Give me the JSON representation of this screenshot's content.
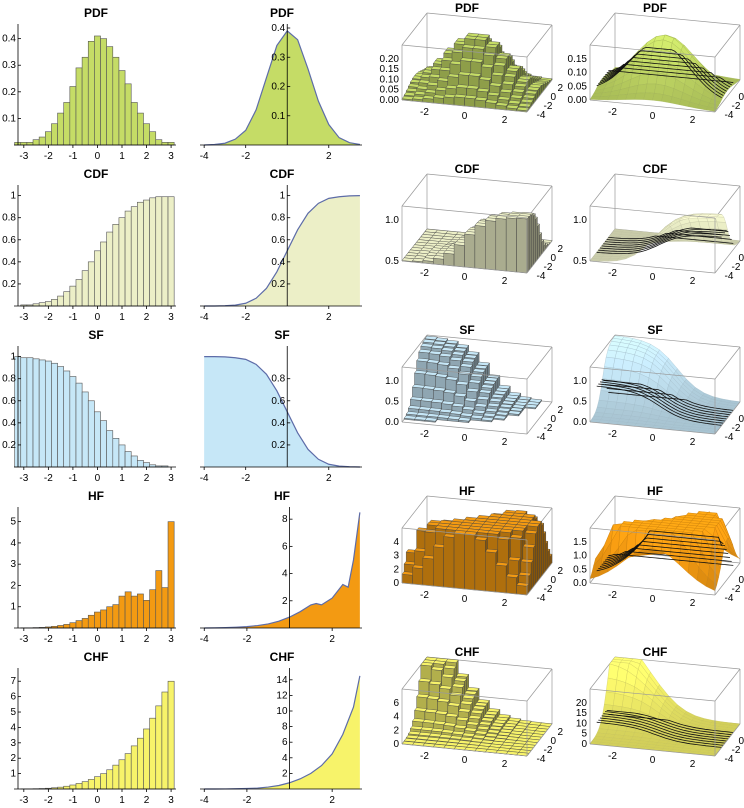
{
  "tick_labels": {
    "hist_x": [
      "-3",
      "-2",
      "-1",
      "0",
      "1",
      "2",
      "3"
    ],
    "smooth_x": [
      "-4",
      "-2",
      "2"
    ],
    "bivar_pdf_z": [
      "0.00",
      "0.05",
      "0.10",
      "0.15",
      "0.20"
    ],
    "smooth_pdf_z": [
      "0.00",
      "0.05",
      "0.10",
      "0.15"
    ],
    "bivar_cdf_z": [
      "0.5",
      "1.0"
    ],
    "bivar_sf_z": [
      "0.0",
      "0.5",
      "1.0"
    ],
    "bivar_hf_z": [
      "0",
      "2",
      "3",
      "4"
    ],
    "smooth_hf_z": [
      "0.0",
      "0.5",
      "1.0",
      "1.5"
    ],
    "bivar_chf_z": [
      "0",
      "2",
      "4",
      "6"
    ],
    "smooth_chf_z": [
      "0",
      "5",
      "10",
      "15",
      "20"
    ],
    "base_a": [
      "-2",
      "0",
      "2"
    ],
    "base_b": [
      "2",
      "0",
      "-2",
      "-4"
    ]
  },
  "chart_data": [
    {
      "type": "bar",
      "title": "PDF",
      "color": "#c5dc66",
      "x": [
        -3.25,
        -3.0,
        -2.75,
        -2.5,
        -2.25,
        -2.0,
        -1.75,
        -1.5,
        -1.25,
        -1.0,
        -0.75,
        -0.5,
        -0.25,
        0.0,
        0.25,
        0.5,
        0.75,
        1.0,
        1.25,
        1.5,
        1.75,
        2.0,
        2.25,
        2.5,
        2.75,
        3.0
      ],
      "values": [
        0.01,
        0.01,
        0.01,
        0.02,
        0.03,
        0.05,
        0.08,
        0.12,
        0.16,
        0.22,
        0.29,
        0.33,
        0.39,
        0.41,
        0.4,
        0.37,
        0.33,
        0.28,
        0.23,
        0.16,
        0.12,
        0.08,
        0.05,
        0.02,
        0.01,
        0.01
      ],
      "xlim": [
        -3.4,
        3.2
      ],
      "ylim": [
        0,
        0.44
      ],
      "yticks": [
        0.1,
        0.2,
        0.3,
        0.4
      ]
    },
    {
      "type": "area",
      "title": "PDF",
      "color": "#c5dc66",
      "x": [
        -4.0,
        -3.5,
        -3.0,
        -2.5,
        -2.0,
        -1.5,
        -1.0,
        -0.5,
        0.0,
        0.5,
        1.0,
        1.5,
        2.0,
        2.5,
        3.0,
        3.5
      ],
      "y": [
        0.0,
        0.002,
        0.006,
        0.02,
        0.05,
        0.12,
        0.23,
        0.34,
        0.39,
        0.36,
        0.26,
        0.15,
        0.07,
        0.025,
        0.008,
        0.002
      ],
      "xlim": [
        -4.2,
        3.6
      ],
      "ylim": [
        0,
        0.4
      ],
      "yticks": [
        0.1,
        0.2,
        0.3,
        0.4
      ]
    },
    {
      "type": "bar",
      "title": "CDF",
      "color": "#ecefc7",
      "x": [
        -3.25,
        -3.0,
        -2.75,
        -2.5,
        -2.25,
        -2.0,
        -1.75,
        -1.5,
        -1.25,
        -1.0,
        -0.75,
        -0.5,
        -0.25,
        0.0,
        0.25,
        0.5,
        0.75,
        1.0,
        1.25,
        1.5,
        1.75,
        2.0,
        2.25,
        2.5,
        2.75,
        3.0
      ],
      "values": [
        0.0,
        0.01,
        0.01,
        0.02,
        0.03,
        0.04,
        0.06,
        0.09,
        0.13,
        0.18,
        0.24,
        0.32,
        0.4,
        0.5,
        0.58,
        0.67,
        0.74,
        0.8,
        0.86,
        0.9,
        0.94,
        0.96,
        0.98,
        0.99,
        0.99,
        0.99
      ],
      "xlim": [
        -3.4,
        3.2
      ],
      "ylim": [
        0,
        1.06
      ],
      "yticks": [
        0.2,
        0.4,
        0.6,
        0.8,
        1.0
      ]
    },
    {
      "type": "area",
      "title": "CDF",
      "color": "#ecefc7",
      "x": [
        -4.0,
        -3.5,
        -3.0,
        -2.5,
        -2.0,
        -1.5,
        -1.0,
        -0.5,
        0.0,
        0.5,
        1.0,
        1.5,
        2.0,
        2.5,
        3.0,
        3.5
      ],
      "y": [
        0.0,
        0.0,
        0.002,
        0.008,
        0.025,
        0.07,
        0.16,
        0.31,
        0.5,
        0.69,
        0.84,
        0.93,
        0.975,
        0.99,
        0.998,
        1.0
      ],
      "xlim": [
        -4.2,
        3.6
      ],
      "ylim": [
        0,
        1.06
      ],
      "yticks": [
        0.2,
        0.4,
        0.6,
        0.8,
        1.0
      ]
    },
    {
      "type": "bar",
      "title": "SF",
      "color": "#c6e7f7",
      "x": [
        -3.25,
        -3.0,
        -2.75,
        -2.5,
        -2.25,
        -2.0,
        -1.75,
        -1.5,
        -1.25,
        -1.0,
        -0.75,
        -0.5,
        -0.25,
        0.0,
        0.25,
        0.5,
        0.75,
        1.0,
        1.25,
        1.5,
        1.75,
        2.0,
        2.25,
        2.5,
        2.75,
        3.0
      ],
      "values": [
        1.0,
        0.99,
        0.99,
        0.98,
        0.97,
        0.96,
        0.94,
        0.91,
        0.87,
        0.82,
        0.76,
        0.68,
        0.6,
        0.5,
        0.42,
        0.33,
        0.26,
        0.2,
        0.14,
        0.1,
        0.06,
        0.04,
        0.02,
        0.01,
        0.01,
        0.0
      ],
      "xlim": [
        -3.4,
        3.2
      ],
      "ylim": [
        0,
        1.06
      ],
      "yticks": [
        0.2,
        0.4,
        0.6,
        0.8,
        1.0
      ]
    },
    {
      "type": "area",
      "title": "SF",
      "color": "#c6e7f7",
      "x": [
        -4.0,
        -3.5,
        -3.0,
        -2.5,
        -2.0,
        -1.5,
        -1.0,
        -0.5,
        0.0,
        0.5,
        1.0,
        1.5,
        2.0,
        2.5,
        3.0,
        3.5
      ],
      "y": [
        1.0,
        1.0,
        0.998,
        0.99,
        0.975,
        0.93,
        0.84,
        0.69,
        0.5,
        0.31,
        0.16,
        0.07,
        0.025,
        0.008,
        0.002,
        0.0
      ],
      "xlim": [
        -4.2,
        3.6
      ],
      "ylim": [
        0,
        1.06
      ],
      "yticks": [
        0.2,
        0.4,
        0.6,
        0.8
      ]
    },
    {
      "type": "bar",
      "title": "HF",
      "color": "#f39a12",
      "x": [
        -3.25,
        -3.0,
        -2.75,
        -2.5,
        -2.25,
        -2.0,
        -1.75,
        -1.5,
        -1.25,
        -1.0,
        -0.75,
        -0.5,
        -0.25,
        0.0,
        0.25,
        0.5,
        0.75,
        1.0,
        1.25,
        1.5,
        1.75,
        2.0,
        2.25,
        2.5,
        2.75,
        3.0
      ],
      "values": [
        0.0,
        0.01,
        0.01,
        0.02,
        0.03,
        0.05,
        0.08,
        0.12,
        0.17,
        0.25,
        0.35,
        0.45,
        0.6,
        0.75,
        0.85,
        1.0,
        1.1,
        1.5,
        1.7,
        1.5,
        1.6,
        1.3,
        1.8,
        2.7,
        1.9,
        5.0
      ],
      "xlim": [
        -3.4,
        3.2
      ],
      "ylim": [
        0,
        5.5
      ],
      "yticks": [
        1,
        2,
        3,
        4,
        5
      ]
    },
    {
      "type": "area",
      "title": "HF",
      "color": "#f39a12",
      "x": [
        -4.0,
        -3.5,
        -3.0,
        -2.5,
        -2.0,
        -1.5,
        -1.0,
        -0.5,
        0.0,
        0.5,
        1.0,
        1.25,
        1.5,
        2.0,
        2.5,
        2.75,
        3.0,
        3.3
      ],
      "y": [
        0.0,
        0.01,
        0.03,
        0.06,
        0.1,
        0.18,
        0.3,
        0.5,
        0.8,
        1.2,
        1.7,
        1.8,
        1.7,
        2.2,
        3.2,
        3.0,
        5.0,
        8.5
      ],
      "xlim": [
        -4.2,
        3.4
      ],
      "ylim": [
        0,
        8.6
      ],
      "yticks": [
        2,
        4,
        6,
        8
      ]
    },
    {
      "type": "bar",
      "title": "CHF",
      "color": "#f7f36a",
      "x": [
        -3.25,
        -3.0,
        -2.75,
        -2.5,
        -2.25,
        -2.0,
        -1.75,
        -1.5,
        -1.25,
        -1.0,
        -0.75,
        -0.5,
        -0.25,
        0.0,
        0.25,
        0.5,
        0.75,
        1.0,
        1.25,
        1.5,
        1.75,
        2.0,
        2.25,
        2.5,
        2.75,
        3.0
      ],
      "values": [
        0.0,
        0.01,
        0.01,
        0.02,
        0.03,
        0.05,
        0.08,
        0.12,
        0.18,
        0.26,
        0.36,
        0.48,
        0.62,
        0.8,
        1.0,
        1.25,
        1.55,
        1.9,
        2.3,
        2.8,
        3.3,
        3.9,
        4.6,
        5.4,
        6.3,
        7.0
      ],
      "xlim": [
        -3.4,
        3.2
      ],
      "ylim": [
        0,
        7.6
      ],
      "yticks": [
        1,
        2,
        3,
        4,
        5,
        6,
        7
      ]
    },
    {
      "type": "area",
      "title": "CHF",
      "color": "#f7f36a",
      "x": [
        -4.0,
        -3.5,
        -3.0,
        -2.5,
        -2.0,
        -1.5,
        -1.0,
        -0.5,
        0.0,
        0.5,
        1.0,
        1.5,
        2.0,
        2.5,
        3.0,
        3.3
      ],
      "y": [
        0.0,
        0.0,
        0.01,
        0.03,
        0.06,
        0.12,
        0.25,
        0.45,
        0.8,
        1.3,
        2.0,
        3.0,
        4.5,
        7.0,
        10.5,
        14.5
      ],
      "xlim": [
        -4.2,
        3.4
      ],
      "ylim": [
        0,
        15
      ],
      "yticks": [
        2,
        4,
        6,
        8,
        10,
        12,
        14
      ]
    },
    {
      "type": "bar3d",
      "title": "PDF",
      "color": "#c5dc66"
    },
    {
      "type": "surface3d",
      "title": "PDF",
      "color": "#c5dc66"
    },
    {
      "type": "bar3d",
      "title": "CDF",
      "color": "#ecefc7"
    },
    {
      "type": "surface3d",
      "title": "CDF",
      "color": "#ecefc7"
    },
    {
      "type": "bar3d",
      "title": "SF",
      "color": "#c6e7f7"
    },
    {
      "type": "surface3d",
      "title": "SF",
      "color": "#c6e7f7"
    },
    {
      "type": "bar3d",
      "title": "HF",
      "color": "#f39a12"
    },
    {
      "type": "surface3d",
      "title": "HF",
      "color": "#f39a12"
    },
    {
      "type": "bar3d",
      "title": "CHF",
      "color": "#f7f36a"
    },
    {
      "type": "surface3d",
      "title": "CHF",
      "color": "#f7f36a"
    }
  ]
}
